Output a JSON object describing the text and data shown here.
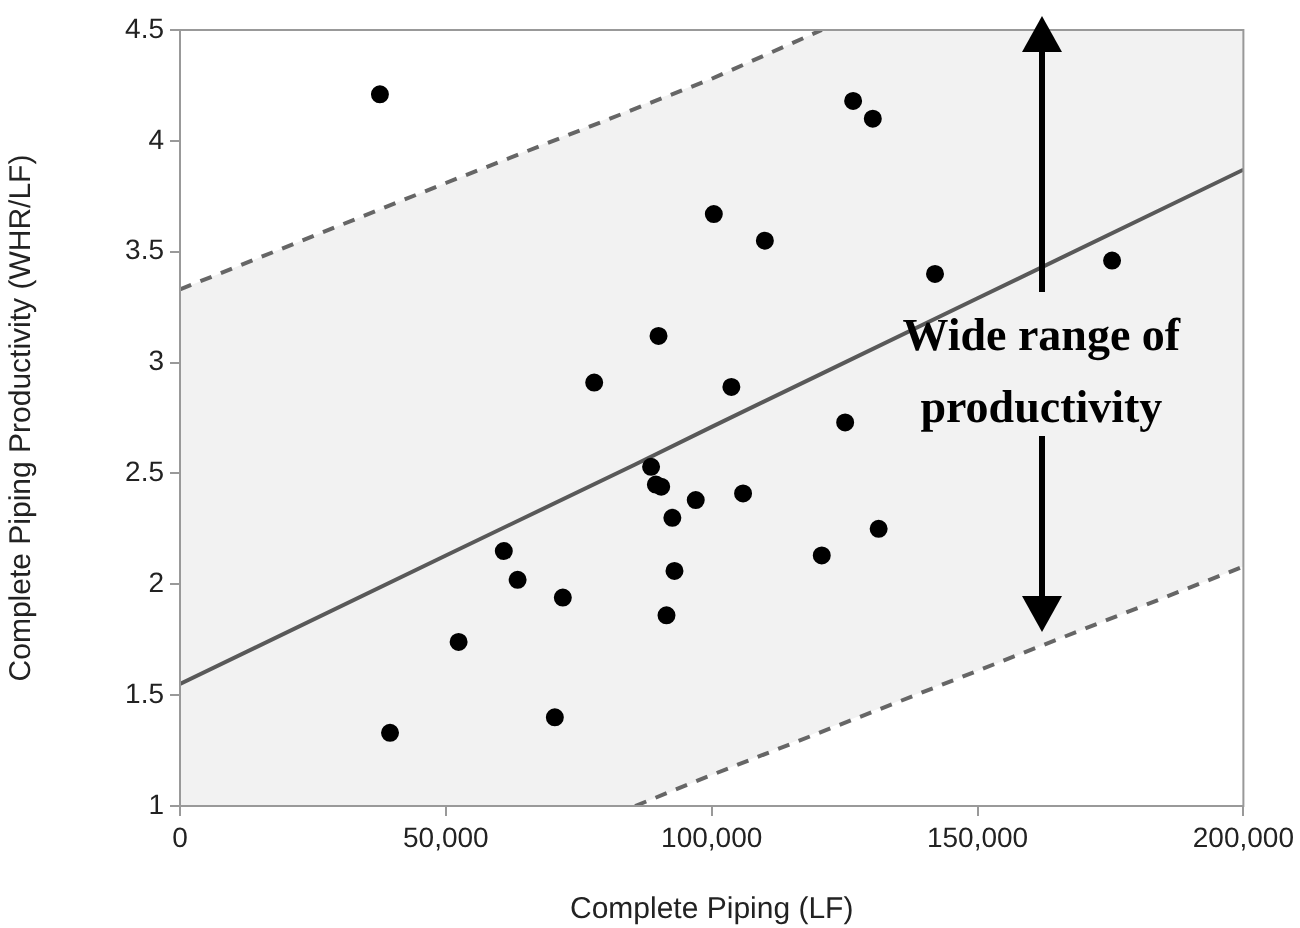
{
  "chart_data": {
    "type": "scatter",
    "xlabel": "Complete Piping (LF)",
    "ylabel": "Complete Piping Productivity (WHR/LF)",
    "xlim": [
      0,
      200000
    ],
    "xticks": [
      {
        "value": 0,
        "label": "0"
      },
      {
        "value": 50000,
        "label": "50,000"
      },
      {
        "value": 100000,
        "label": "100,000"
      },
      {
        "value": 150000,
        "label": "150,000"
      },
      {
        "value": 200000,
        "label": "200,000"
      }
    ],
    "ylim": [
      1,
      4.5
    ],
    "yticks": [
      1,
      1.5,
      2,
      2.5,
      3,
      3.5,
      4,
      4.5
    ],
    "grid": false,
    "legend": false,
    "marker": "circle",
    "series": [
      {
        "type": "scatter",
        "color": "#000000",
        "x": [
          37600,
          126600,
          130300,
          100400,
          110000,
          142000,
          175300,
          77900,
          90000,
          103700,
          125100,
          88600,
          89500,
          90500,
          97000,
          92600,
          105900,
          93000,
          91500,
          60900,
          63500,
          72000,
          52400,
          70500,
          39500,
          120700,
          131400
        ],
        "values": [
          4.21,
          4.18,
          4.1,
          3.67,
          3.55,
          3.4,
          3.46,
          2.91,
          3.12,
          2.89,
          2.73,
          2.53,
          2.45,
          2.44,
          2.38,
          2.3,
          2.41,
          2.06,
          1.86,
          2.15,
          2.02,
          1.94,
          1.74,
          1.4,
          1.33,
          2.13,
          2.25
        ]
      },
      {
        "type": "line",
        "color": "#595959",
        "line_style": "solid",
        "marker": "none",
        "x": [
          0,
          50000,
          85600,
          100000,
          120700,
          150000,
          200000
        ],
        "values": [
          1.55,
          2.13,
          2.54,
          2.71,
          2.95,
          3.29,
          3.87
        ],
        "upper": [
          3.33,
          3.81,
          4.15,
          4.28,
          4.5,
          4.5,
          4.5
        ],
        "lower": [
          1,
          1,
          1,
          1.14,
          1.34,
          1.61,
          2.08
        ]
      },
      {
        "type": "line",
        "color": "#666666",
        "line_style": "dashed",
        "marker": "none",
        "x": [
          0,
          50000,
          100000,
          120700
        ],
        "values": [
          3.33,
          3.81,
          4.28,
          4.5
        ]
      },
      {
        "type": "line",
        "color": "#666666",
        "line_style": "dashed",
        "marker": "none",
        "x": [
          85600,
          100000,
          150000,
          200000
        ],
        "values": [
          1,
          1.14,
          1.61,
          2.08
        ]
      }
    ],
    "annotations": [
      "Wide range of productivity"
    ]
  }
}
